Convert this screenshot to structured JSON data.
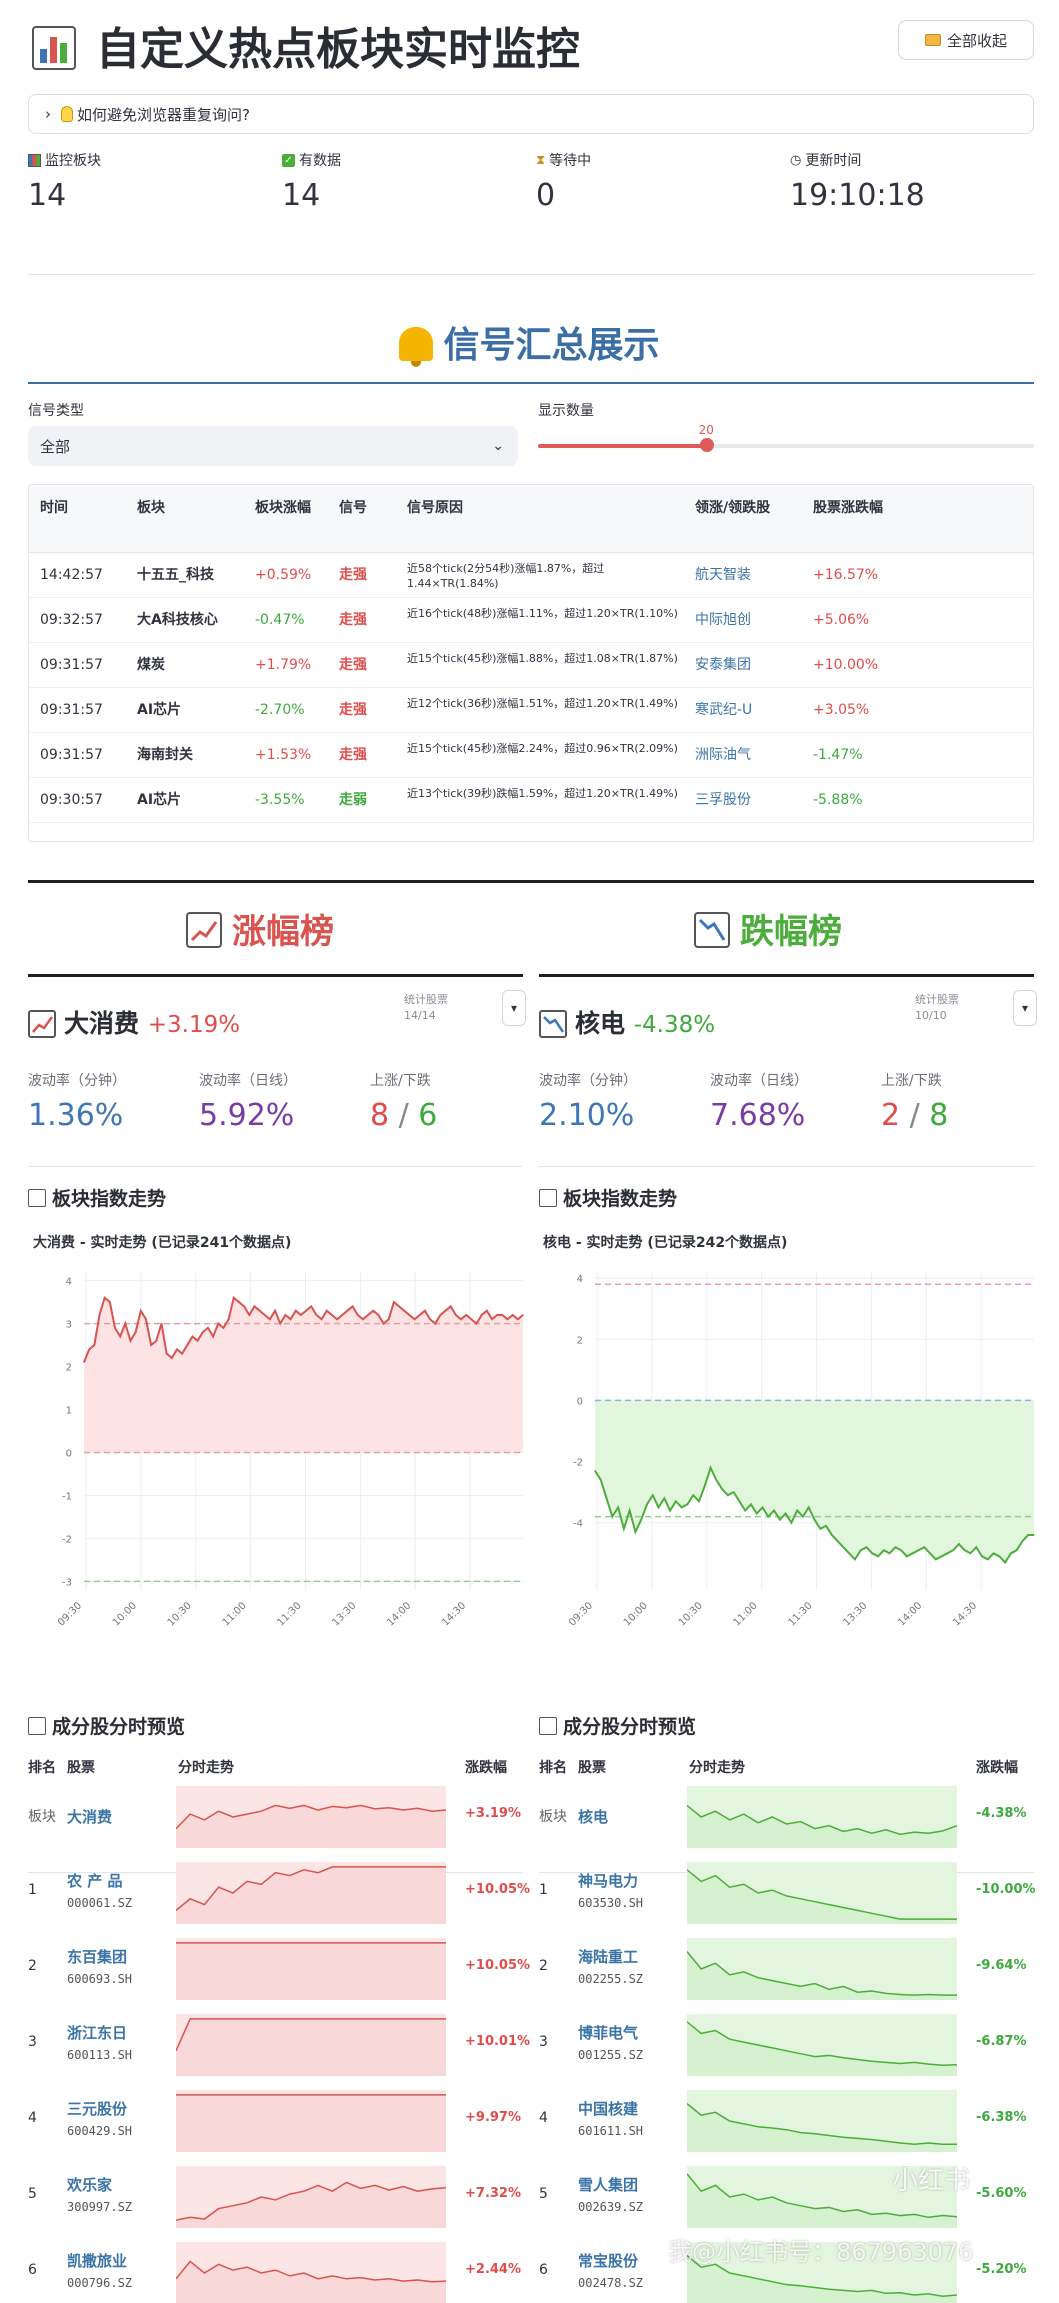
{
  "header": {
    "title": "自定义热点板块实时监控",
    "collapse_all": "全部收起",
    "expander": "如何避免浏览器重复询问?"
  },
  "metrics": [
    {
      "label": "监控板块",
      "value": "14"
    },
    {
      "label": "有数据",
      "value": "14"
    },
    {
      "label": "等待中",
      "value": "0"
    },
    {
      "label": "更新时间",
      "value": "19:10:18"
    }
  ],
  "signals": {
    "title": "信号汇总展示",
    "type_label": "信号类型",
    "type_value": "全部",
    "count_label": "显示数量",
    "count_value": "20",
    "slider_fraction": 0.34,
    "columns": [
      "时间",
      "板块",
      "板块涨幅",
      "信号",
      "信号原因",
      "领涨/领跌股",
      "股票涨跌幅"
    ],
    "rows": [
      {
        "time": "14:42:57",
        "board": "十五五_科技",
        "board_pct": "+0.59%",
        "signal": "走强",
        "reason": "近58个tick(2分54秒)涨幅1.87%，超过1.44×TR(1.84%)",
        "stock": "航天智装",
        "stock_pct": "+16.57%",
        "dir": "up",
        "sdir": "up"
      },
      {
        "time": "09:32:57",
        "board": "大A科技核心",
        "board_pct": "-0.47%",
        "signal": "走强",
        "reason": "近16个tick(48秒)涨幅1.11%，超过1.20×TR(1.10%)",
        "stock": "中际旭创",
        "stock_pct": "+5.06%",
        "dir": "down",
        "sdir": "up"
      },
      {
        "time": "09:31:57",
        "board": "煤炭",
        "board_pct": "+1.79%",
        "signal": "走强",
        "reason": "近15个tick(45秒)涨幅1.88%，超过1.08×TR(1.87%)",
        "stock": "安泰集团",
        "stock_pct": "+10.00%",
        "dir": "up",
        "sdir": "up"
      },
      {
        "time": "09:31:57",
        "board": "AI芯片",
        "board_pct": "-2.70%",
        "signal": "走强",
        "reason": "近12个tick(36秒)涨幅1.51%，超过1.20×TR(1.49%)",
        "stock": "寒武纪-U",
        "stock_pct": "+3.05%",
        "dir": "down",
        "sdir": "up"
      },
      {
        "time": "09:31:57",
        "board": "海南封关",
        "board_pct": "+1.53%",
        "signal": "走强",
        "reason": "近15个tick(45秒)涨幅2.24%，超过0.96×TR(2.09%)",
        "stock": "洲际油气",
        "stock_pct": "-1.47%",
        "dir": "up",
        "sdir": "down"
      },
      {
        "time": "09:30:57",
        "board": "AI芯片",
        "board_pct": "-3.55%",
        "signal": "走弱",
        "reason": "近13个tick(39秒)跌幅1.59%，超过1.20×TR(1.49%)",
        "stock": "三孚股份",
        "stock_pct": "-5.88%",
        "dir": "down",
        "sdir": "down"
      }
    ]
  },
  "gainers": {
    "title": "涨幅榜",
    "name": "大消费",
    "pct": "+3.19%",
    "stat_label": "统计股票",
    "stat_value": "14/14",
    "vol_min_label": "波动率（分钟）",
    "vol_min": "1.36%",
    "vol_day_label": "波动率（日线）",
    "vol_day": "5.92%",
    "updown_label": "上涨/下跌",
    "up_count": "8",
    "down_count": "6",
    "trend_title": "板块指数走势",
    "chart_title": "大消费 - 实时走势 (已记录241个数据点)"
  },
  "losers": {
    "title": "跌幅榜",
    "name": "核电",
    "pct": "-4.38%",
    "stat_label": "统计股票",
    "stat_value": "10/10",
    "vol_min_label": "波动率（分钟）",
    "vol_min": "2.10%",
    "vol_day_label": "波动率（日线）",
    "vol_day": "7.68%",
    "updown_label": "上涨/下跌",
    "up_count": "2",
    "down_count": "8",
    "trend_title": "板块指数走势",
    "chart_title": "核电 - 实时走势 (已记录242个数据点)"
  },
  "chart_data": [
    {
      "type": "line",
      "title": "大消费 - 实时走势 (已记录241个数据点)",
      "x_ticks": [
        "09:30",
        "10:00",
        "10:30",
        "11:00",
        "11:30",
        "13:30",
        "14:00",
        "14:30"
      ],
      "ylim": [
        -3.2,
        4.2
      ],
      "y_ticks": [
        -3,
        -2,
        -1,
        0,
        1,
        2,
        3,
        4
      ],
      "ref_lines": [
        3.0,
        0,
        -3.0
      ],
      "y": [
        2.1,
        2.4,
        2.5,
        3.2,
        3.6,
        3.5,
        2.9,
        2.7,
        3.0,
        2.6,
        2.8,
        3.3,
        3.1,
        2.5,
        2.6,
        3.0,
        2.3,
        2.2,
        2.4,
        2.3,
        2.5,
        2.7,
        2.6,
        2.8,
        2.9,
        2.7,
        3.0,
        2.9,
        3.1,
        3.6,
        3.5,
        3.4,
        3.2,
        3.4,
        3.3,
        3.2,
        3.1,
        3.3,
        3.0,
        3.2,
        3.1,
        3.3,
        3.2,
        3.3,
        3.4,
        3.2,
        3.1,
        3.3,
        3.2,
        3.1,
        3.2,
        3.3,
        3.4,
        3.2,
        3.1,
        3.2,
        3.3,
        3.2,
        3.0,
        3.1,
        3.5,
        3.4,
        3.3,
        3.2,
        3.1,
        3.2,
        3.3,
        3.1,
        3.0,
        3.2,
        3.3,
        3.4,
        3.2,
        3.1,
        3.2,
        3.1,
        3.0,
        3.2,
        3.3,
        3.1,
        3.2,
        3.2,
        3.1,
        3.2,
        3.1,
        3.2
      ],
      "line_color": "#d9534f",
      "fill_color": "#fde3e3"
    },
    {
      "type": "line",
      "title": "核电 - 实时走势 (已记录242个数据点)",
      "x_ticks": [
        "09:30",
        "10:00",
        "10:30",
        "11:00",
        "11:30",
        "13:30",
        "14:00",
        "14:30"
      ],
      "ylim": [
        -6.2,
        4.2
      ],
      "y_ticks": [
        -4,
        -2,
        0,
        2,
        4
      ],
      "ref_lines": [
        3.8,
        0,
        -3.8
      ],
      "y": [
        -2.3,
        -2.6,
        -3.2,
        -3.8,
        -3.5,
        -4.2,
        -3.6,
        -4.3,
        -3.9,
        -3.4,
        -3.1,
        -3.5,
        -3.2,
        -3.6,
        -3.3,
        -3.5,
        -3.4,
        -3.1,
        -3.3,
        -2.8,
        -2.2,
        -2.6,
        -2.9,
        -3.1,
        -3.0,
        -3.3,
        -3.6,
        -3.4,
        -3.7,
        -3.5,
        -3.8,
        -3.6,
        -3.9,
        -3.7,
        -4.0,
        -3.6,
        -3.8,
        -3.5,
        -3.9,
        -4.2,
        -4.1,
        -4.4,
        -4.6,
        -4.8,
        -5.0,
        -5.2,
        -4.9,
        -4.8,
        -5.0,
        -5.1,
        -4.9,
        -5.0,
        -4.8,
        -4.9,
        -5.1,
        -5.0,
        -4.9,
        -4.8,
        -5.0,
        -5.2,
        -5.1,
        -5.0,
        -4.9,
        -4.7,
        -4.9,
        -5.0,
        -4.8,
        -5.1,
        -5.2,
        -5.0,
        -5.1,
        -5.3,
        -5.0,
        -4.9,
        -4.6,
        -4.4,
        -4.4
      ],
      "line_color": "#4cae3a",
      "fill_color": "#e2f5dd"
    }
  ],
  "components": {
    "title": "成分股分时预览",
    "columns": [
      "排名",
      "股票",
      "分时走势",
      "涨跌幅"
    ],
    "board_label": "板块",
    "left": [
      {
        "rank": "板块",
        "name": "大消费",
        "code": "",
        "pct": "+3.19%",
        "trend": [
          0.3,
          0.55,
          0.45,
          0.6,
          0.5,
          0.55,
          0.6,
          0.7,
          0.65,
          0.7,
          0.62,
          0.68,
          0.66,
          0.7,
          0.64,
          0.66,
          0.62,
          0.65,
          0.6,
          0.62
        ],
        "up": true
      },
      {
        "rank": "1",
        "name": "农 产 品",
        "code": "000061.SZ",
        "pct": "+10.05%",
        "trend": [
          0.2,
          0.4,
          0.3,
          0.6,
          0.5,
          0.7,
          0.65,
          0.85,
          0.8,
          0.9,
          0.85,
          0.95,
          0.95,
          0.95,
          0.95,
          0.95,
          0.95,
          0.95,
          0.95,
          0.95
        ],
        "up": true
      },
      {
        "rank": "2",
        "name": "东百集团",
        "code": "600693.SH",
        "pct": "+10.05%",
        "trend": [
          0.95,
          0.95,
          0.95,
          0.95,
          0.95,
          0.95,
          0.95,
          0.95,
          0.95,
          0.95,
          0.95,
          0.95,
          0.95,
          0.95,
          0.95,
          0.95,
          0.95,
          0.95,
          0.95,
          0.95
        ],
        "up": true
      },
      {
        "rank": "3",
        "name": "浙江东日",
        "code": "600113.SH",
        "pct": "+10.01%",
        "trend": [
          0.4,
          0.95,
          0.95,
          0.95,
          0.95,
          0.95,
          0.95,
          0.95,
          0.95,
          0.95,
          0.95,
          0.95,
          0.95,
          0.95,
          0.95,
          0.95,
          0.95,
          0.95,
          0.95,
          0.95
        ],
        "up": true
      },
      {
        "rank": "4",
        "name": "三元股份",
        "code": "600429.SH",
        "pct": "+9.97%",
        "trend": [
          0.95,
          0.95,
          0.95,
          0.95,
          0.95,
          0.95,
          0.95,
          0.95,
          0.95,
          0.95,
          0.95,
          0.95,
          0.95,
          0.95,
          0.95,
          0.95,
          0.95,
          0.95,
          0.95,
          0.95
        ],
        "up": true
      },
      {
        "rank": "5",
        "name": "欢乐家",
        "code": "300997.SZ",
        "pct": "+7.32%",
        "trend": [
          0.1,
          0.15,
          0.12,
          0.3,
          0.35,
          0.4,
          0.5,
          0.45,
          0.55,
          0.6,
          0.7,
          0.6,
          0.75,
          0.65,
          0.7,
          0.62,
          0.68,
          0.6,
          0.64,
          0.66
        ],
        "up": true
      },
      {
        "rank": "6",
        "name": "凯撒旅业",
        "code": "000796.SZ",
        "pct": "+2.44%",
        "trend": [
          0.4,
          0.7,
          0.5,
          0.65,
          0.55,
          0.6,
          0.5,
          0.55,
          0.45,
          0.5,
          0.4,
          0.45,
          0.4,
          0.42,
          0.38,
          0.4,
          0.36,
          0.38,
          0.35,
          0.36
        ],
        "up": true
      }
    ],
    "right": [
      {
        "rank": "板块",
        "name": "核电",
        "code": "",
        "pct": "-4.38%",
        "trend": [
          0.7,
          0.5,
          0.6,
          0.45,
          0.55,
          0.4,
          0.5,
          0.38,
          0.42,
          0.3,
          0.35,
          0.25,
          0.3,
          0.22,
          0.28,
          0.2,
          0.24,
          0.22,
          0.26,
          0.35
        ],
        "up": false
      },
      {
        "rank": "1",
        "name": "神马电力",
        "code": "603530.SH",
        "pct": "-10.00%",
        "trend": [
          0.9,
          0.7,
          0.8,
          0.6,
          0.65,
          0.5,
          0.55,
          0.45,
          0.4,
          0.35,
          0.3,
          0.25,
          0.2,
          0.15,
          0.1,
          0.05,
          0.05,
          0.05,
          0.05,
          0.05
        ],
        "up": false
      },
      {
        "rank": "2",
        "name": "海陆重工",
        "code": "002255.SZ",
        "pct": "-9.64%",
        "trend": [
          0.8,
          0.5,
          0.6,
          0.4,
          0.45,
          0.35,
          0.3,
          0.25,
          0.2,
          0.25,
          0.15,
          0.2,
          0.1,
          0.12,
          0.08,
          0.06,
          0.05,
          0.06,
          0.05,
          0.05
        ],
        "up": false
      },
      {
        "rank": "3",
        "name": "博菲电气",
        "code": "001255.SZ",
        "pct": "-6.87%",
        "trend": [
          0.9,
          0.7,
          0.75,
          0.6,
          0.55,
          0.5,
          0.45,
          0.4,
          0.35,
          0.3,
          0.32,
          0.28,
          0.25,
          0.22,
          0.2,
          0.18,
          0.2,
          0.17,
          0.15,
          0.16
        ],
        "up": false
      },
      {
        "rank": "4",
        "name": "中国核建",
        "code": "601611.SH",
        "pct": "-6.38%",
        "trend": [
          0.8,
          0.6,
          0.65,
          0.5,
          0.45,
          0.4,
          0.38,
          0.35,
          0.3,
          0.28,
          0.25,
          0.22,
          0.2,
          0.18,
          0.15,
          0.12,
          0.1,
          0.12,
          0.1,
          0.1
        ],
        "up": false
      },
      {
        "rank": "5",
        "name": "雪人集团",
        "code": "002639.SZ",
        "pct": "-5.60%",
        "trend": [
          0.9,
          0.6,
          0.7,
          0.5,
          0.55,
          0.45,
          0.5,
          0.4,
          0.35,
          0.3,
          0.32,
          0.25,
          0.28,
          0.2,
          0.22,
          0.18,
          0.2,
          0.15,
          0.18,
          0.16
        ],
        "up": false
      },
      {
        "rank": "6",
        "name": "常宝股份",
        "code": "002478.SZ",
        "pct": "-5.20%",
        "trend": [
          0.8,
          0.6,
          0.65,
          0.5,
          0.45,
          0.4,
          0.35,
          0.3,
          0.28,
          0.25,
          0.22,
          0.2,
          0.18,
          0.2,
          0.15,
          0.16,
          0.12,
          0.14,
          0.1,
          0.12
        ],
        "up": false
      }
    ]
  },
  "watermark": "我@小红书号：867963076",
  "watermark_logo": "小红书"
}
